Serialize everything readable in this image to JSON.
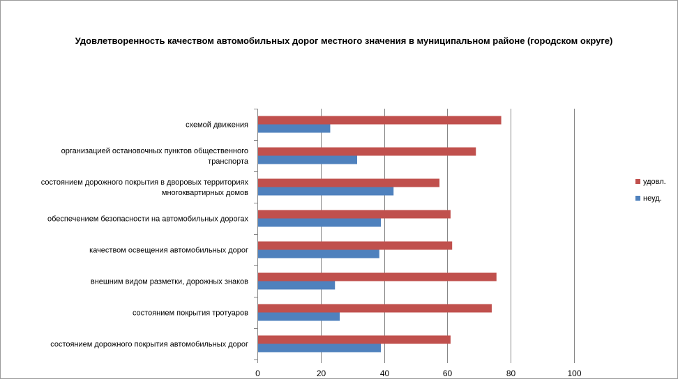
{
  "chart_data": {
    "type": "bar",
    "orientation": "horizontal",
    "title": "Удовлетворенность качеством автомобильных дорог местного значения в муниципальном районе (городском округе)",
    "categories": [
      [
        "схемой движения"
      ],
      [
        "организацией остановочных пунктов общественного",
        "транспорта"
      ],
      [
        "состоянием дорожного покрытия в дворовых территориях",
        "многоквартирных домов"
      ],
      [
        "обеспечением  безопасности на автомобильных дорогах"
      ],
      [
        "качеством освещения  автомобильных дорог"
      ],
      [
        "внешним  видом разметки, дорожных знаков"
      ],
      [
        "состоянием  покрытия тротуаров"
      ],
      [
        "состоянием дорожного покрытия автомобильных дорог"
      ]
    ],
    "series": [
      {
        "name": "удовл.",
        "color": "#c0504d",
        "values": [
          77,
          69,
          57.5,
          61,
          61.5,
          75.5,
          74,
          61
        ]
      },
      {
        "name": "неуд.",
        "color": "#4f81bd",
        "values": [
          23,
          31.5,
          43,
          39,
          38.5,
          24.5,
          26,
          39
        ]
      }
    ],
    "xlim": [
      0,
      100
    ],
    "xticks": [
      "0",
      "20",
      "40",
      "60",
      "80",
      "100"
    ],
    "xlabel": "",
    "ylabel": "",
    "grid": true,
    "legend_position": "right"
  }
}
